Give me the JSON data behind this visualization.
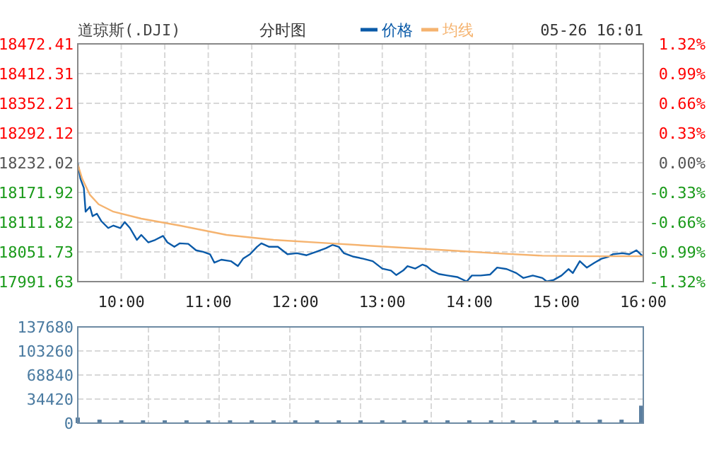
{
  "chart_data": [
    {
      "type": "line",
      "title": "道琼斯(.DJI)",
      "subtitle": "分时图",
      "annotations": [
        "05-26 16:01"
      ],
      "legend": "top",
      "grid": true,
      "marker": "none",
      "line_style": "solid",
      "xlim": [
        9.5,
        16
      ],
      "xticks": [
        {
          "value": 10,
          "label": "10:00"
        },
        {
          "value": 10.5,
          "label": null
        },
        {
          "value": 11,
          "label": "11:00"
        },
        {
          "value": 11.5,
          "label": null
        },
        {
          "value": 12,
          "label": "12:00"
        },
        {
          "value": 12.5,
          "label": null
        },
        {
          "value": 13,
          "label": "13:00"
        },
        {
          "value": 13.5,
          "label": null
        },
        {
          "value": 14,
          "label": "14:00"
        },
        {
          "value": 14.5,
          "label": null
        },
        {
          "value": 15,
          "label": "15:00"
        },
        {
          "value": 15.5,
          "label": null
        },
        {
          "value": 16,
          "label": "16:00"
        }
      ],
      "ylim": [
        17991.63,
        18472.41
      ],
      "yticks": [
        17991.63,
        18051.73,
        18111.82,
        18171.92,
        18232.02,
        18292.12,
        18352.21,
        18412.31,
        18472.41
      ],
      "y2lim": [
        -1.32,
        1.32
      ],
      "y2ticks": [
        {
          "value": -1.32,
          "label": "-1.32%"
        },
        {
          "value": -0.99,
          "label": "-0.99%"
        },
        {
          "value": -0.66,
          "label": "-0.66%"
        },
        {
          "value": -0.33,
          "label": "-0.33%"
        },
        {
          "value": 0,
          "label": "0.00%"
        },
        {
          "value": 0.33,
          "label": "0.33%"
        },
        {
          "value": 0.66,
          "label": "0.66%"
        },
        {
          "value": 0.99,
          "label": "0.99%"
        },
        {
          "value": 1.32,
          "label": "1.32%"
        }
      ],
      "series": [
        {
          "name": "价格",
          "color": "#0a5aa8",
          "x": [
            9.5,
            9.53,
            9.57,
            9.59,
            9.64,
            9.67,
            9.72,
            9.77,
            9.85,
            9.91,
            9.99,
            10.04,
            10.1,
            10.18,
            10.23,
            10.31,
            10.39,
            10.48,
            10.53,
            10.61,
            10.67,
            10.77,
            10.86,
            10.94,
            11.02,
            11.07,
            11.15,
            11.26,
            11.34,
            11.4,
            11.48,
            11.56,
            11.61,
            11.7,
            11.8,
            11.91,
            12.02,
            12.13,
            12.24,
            12.35,
            12.43,
            12.5,
            12.56,
            12.67,
            12.78,
            12.89,
            13,
            13.1,
            13.16,
            13.24,
            13.29,
            13.38,
            13.46,
            13.51,
            13.57,
            13.65,
            13.75,
            13.86,
            13.97,
            14.03,
            14.13,
            14.24,
            14.32,
            14.43,
            14.54,
            14.62,
            14.73,
            14.84,
            14.89,
            14.97,
            15.06,
            15.14,
            15.19,
            15.27,
            15.35,
            15.44,
            15.52,
            15.6,
            15.65,
            15.76,
            15.84,
            15.92,
            16
          ],
          "values": [
            18232,
            18200,
            18181,
            18133,
            18143,
            18124,
            18129,
            18114,
            18100,
            18105,
            18100,
            18112,
            18100,
            18076,
            18086,
            18071,
            18076,
            18084,
            18071,
            18062,
            18069,
            18068,
            18055,
            18052,
            18047,
            18030,
            18036,
            18033,
            18023,
            18038,
            18047,
            18062,
            18069,
            18062,
            18062,
            18047,
            18049,
            18045,
            18052,
            18059,
            18066,
            18062,
            18049,
            18042,
            18038,
            18033,
            18018,
            18014,
            18005,
            18014,
            18023,
            18018,
            18026,
            18023,
            18014,
            18007,
            18004,
            18001,
            17992,
            18004,
            18004,
            18006,
            18020,
            18017,
            18009,
            17999,
            18004,
            17999,
            17992,
            17995,
            18004,
            18017,
            18009,
            18033,
            18020,
            18030,
            18038,
            18042,
            18047,
            18049,
            18047,
            18055,
            18042
          ]
        },
        {
          "name": "均线",
          "color": "#f5b36f",
          "x": [
            9.5,
            9.55,
            9.64,
            9.74,
            9.91,
            10.23,
            10.67,
            11.21,
            11.75,
            12.4,
            13.05,
            13.75,
            14.3,
            14.84,
            15.38,
            16
          ],
          "values": [
            18229,
            18200,
            18167,
            18148,
            18133,
            18119,
            18105,
            18086,
            18076,
            18069,
            18062,
            18055,
            18049,
            18044,
            18043,
            18043
          ]
        }
      ]
    },
    {
      "type": "bar",
      "tick_labels": "y",
      "grid": true,
      "color": "#5b7fa0",
      "xlim": [
        9.5,
        16
      ],
      "xticks": [
        {
          "value": 10.3125,
          "label": null
        },
        {
          "value": 11.125,
          "label": null
        },
        {
          "value": 11.9375,
          "label": null
        },
        {
          "value": 12.75,
          "label": null
        },
        {
          "value": 13.5625,
          "label": null
        },
        {
          "value": 14.375,
          "label": null
        },
        {
          "value": 15.1875,
          "label": null
        }
      ],
      "ylim": [
        0,
        137680
      ],
      "yticks": [
        0,
        34420,
        68840,
        103260,
        137680
      ],
      "x": [
        9.5,
        9.75,
        10,
        10.25,
        10.5,
        10.75,
        11,
        11.25,
        11.5,
        11.75,
        12,
        12.25,
        12.5,
        12.75,
        13,
        13.25,
        13.5,
        13.75,
        14,
        14.25,
        14.5,
        14.75,
        15,
        15.25,
        15.5,
        15.75,
        16
      ],
      "values": [
        8000,
        5000,
        4000,
        4000,
        4000,
        4000,
        4000,
        4000,
        4000,
        4000,
        4000,
        4000,
        4000,
        4000,
        4000,
        4000,
        4000,
        4000,
        4000,
        4000,
        4000,
        4000,
        4000,
        4000,
        5000,
        5000,
        25000
      ]
    }
  ]
}
